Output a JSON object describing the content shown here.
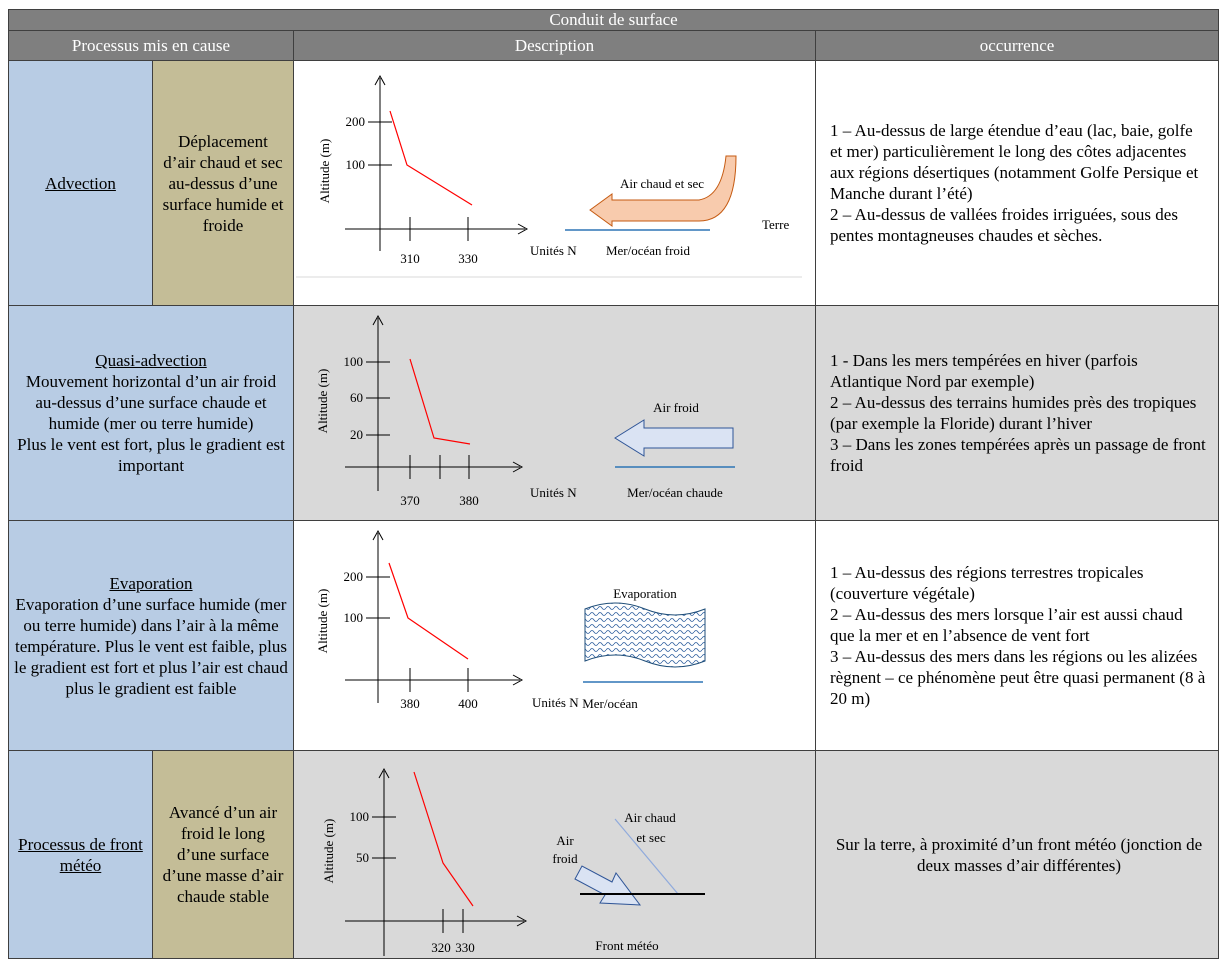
{
  "table": {
    "title": "Conduit de surface",
    "headers": [
      "Processus mis en cause",
      "Description",
      "occurrence"
    ],
    "rows": [
      {
        "process": "Advection",
        "detail": "Déplacement d’air chaud et sec au-dessus d’une surface humide et froide",
        "diagram": {
          "y_label": "Altitude  (m)",
          "yticks": [
            "200",
            "100"
          ],
          "xticks": [
            "310",
            "330"
          ],
          "x_label": "Unités  N",
          "labels": [
            "Air chaud  et sec",
            "Terre",
            "Mer/océan froid"
          ]
        },
        "occurrence": [
          "1 – Au-dessus de large étendue d’eau (lac, baie, golfe et mer) particulièrement le long des côtes adjacentes aux régions désertiques (notamment Golfe Persique et Manche durant l’été)",
          "2 – Au-dessus de vallées froides irriguées, sous des pentes montagneuses chaudes et sèches."
        ]
      },
      {
        "process": "Quasi-advection",
        "detail": [
          "Mouvement horizontal d’un air froid au-dessus d’une surface chaude et humide (mer ou terre humide)",
          "Plus le vent est fort, plus le gradient est important"
        ],
        "diagram": {
          "y_label": "Altitude  (m)",
          "yticks": [
            "100",
            "60",
            "20"
          ],
          "xticks": [
            "370",
            "380"
          ],
          "x_label": "Unités  N",
          "labels": [
            "Air froid",
            "Mer/océan chaude"
          ]
        },
        "occurrence": [
          "1 - Dans les mers tempérées en hiver (parfois Atlantique Nord par exemple)",
          "2 – Au-dessus des terrains humides près des tropiques (par exemple la Floride) durant l’hiver",
          "3 – Dans les zones tempérées après un passage de front froid"
        ]
      },
      {
        "process": "Evaporation",
        "detail": [
          "Evaporation d’une surface humide (mer ou terre humide) dans l’air à la même température. Plus le vent est faible, plus le gradient est fort et plus l’air est chaud plus le gradient est faible"
        ],
        "diagram": {
          "y_label": "Altitude  (m)",
          "yticks": [
            "200",
            "100"
          ],
          "xticks": [
            "380",
            "400"
          ],
          "x_label": "Unités  N",
          "labels": [
            "Evaporation",
            "Mer/océan"
          ]
        },
        "occurrence": [
          "1 – Au-dessus des régions terrestres tropicales (couverture végétale)",
          "2 – Au-dessus des mers lorsque l’air est aussi chaud que la mer et en l’absence de vent fort",
          "3 – Au-dessus des mers dans les régions ou les alizées règnent – ce phénomène peut être quasi permanent (8 à 20 m)"
        ]
      },
      {
        "process": "Processus de front météo",
        "detail": "Avancé d’un air froid le long d’une surface d’une masse d’air chaude stable",
        "diagram": {
          "y_label": "Altitude  (m)",
          "yticks": [
            "100",
            "50"
          ],
          "xticks": [
            "320",
            "330"
          ],
          "labels": [
            "Air",
            "froid",
            "Air chaud",
            "et sec",
            "Front météo"
          ]
        },
        "occurrence": [
          "Sur la terre, à proximité d’un front météo (jonction de deux masses d’air différentes)"
        ]
      }
    ]
  }
}
